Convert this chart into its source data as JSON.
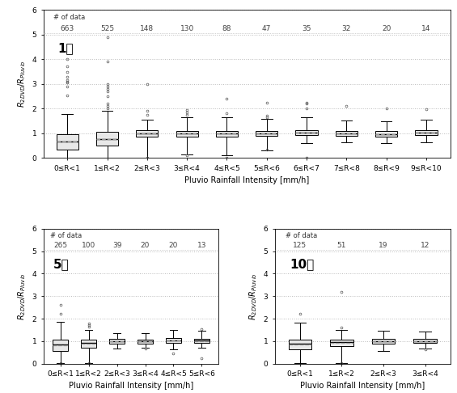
{
  "panel1": {
    "label": "1분",
    "n_data": [
      663,
      525,
      148,
      130,
      88,
      47,
      35,
      32,
      20,
      14
    ],
    "xlabels": [
      "0≤R<1",
      "1≤R<2",
      "2≤R<3",
      "3≤R<4",
      "4≤R<5",
      "5≤R<6",
      "6≤R<7",
      "7≤R<8",
      "8≤R<9",
      "9≤R<10"
    ],
    "xlabel": "Pluvio Rainfall Intensity [mm/h]",
    "ylim": [
      0,
      6
    ],
    "yticks": [
      0,
      1,
      2,
      3,
      4,
      5,
      6
    ],
    "boxes": [
      {
        "med": 0.67,
        "q1": 0.35,
        "q3": 0.98,
        "whislo": 0.01,
        "whishi": 1.77,
        "fliers_high": [
          2.55,
          2.9,
          3.05,
          3.1,
          3.15,
          3.3,
          3.5,
          3.7,
          4.0
        ],
        "fliers_low": []
      },
      {
        "med": 0.78,
        "q1": 0.5,
        "q3": 1.05,
        "whislo": 0.01,
        "whishi": 1.9,
        "fliers_high": [
          2.0,
          2.1,
          2.2,
          2.5,
          2.7,
          2.8,
          2.9,
          3.0,
          3.9,
          4.9
        ],
        "fliers_low": []
      },
      {
        "med": 1.0,
        "q1": 0.85,
        "q3": 1.12,
        "whislo": 0.02,
        "whishi": 1.55,
        "fliers_high": [
          1.75,
          1.9,
          3.0
        ],
        "fliers_low": [
          0.01
        ]
      },
      {
        "med": 1.0,
        "q1": 0.88,
        "q3": 1.1,
        "whislo": 0.15,
        "whishi": 1.65,
        "fliers_high": [
          1.75,
          1.85,
          1.95
        ],
        "fliers_low": [
          0.1
        ]
      },
      {
        "med": 1.0,
        "q1": 0.88,
        "q3": 1.1,
        "whislo": 0.1,
        "whishi": 1.65,
        "fliers_high": [
          1.82,
          2.42
        ],
        "fliers_low": [
          0.02
        ]
      },
      {
        "med": 1.0,
        "q1": 0.9,
        "q3": 1.1,
        "whislo": 0.3,
        "whishi": 1.6,
        "fliers_high": [
          1.65,
          1.72,
          2.25
        ],
        "fliers_low": [
          0.35
        ]
      },
      {
        "med": 1.02,
        "q1": 0.92,
        "q3": 1.12,
        "whislo": 0.6,
        "whishi": 1.65,
        "fliers_high": [
          2.0,
          2.2,
          2.25
        ],
        "fliers_low": [
          0.02
        ]
      },
      {
        "med": 1.0,
        "q1": 0.9,
        "q3": 1.08,
        "whislo": 0.65,
        "whishi": 1.52,
        "fliers_high": [
          2.1
        ],
        "fliers_low": []
      },
      {
        "med": 0.98,
        "q1": 0.85,
        "q3": 1.08,
        "whislo": 0.6,
        "whishi": 1.5,
        "fliers_high": [
          2.0
        ],
        "fliers_low": []
      },
      {
        "med": 1.02,
        "q1": 0.92,
        "q3": 1.12,
        "whislo": 0.65,
        "whishi": 1.55,
        "fliers_high": [
          1.98
        ],
        "fliers_low": []
      }
    ]
  },
  "panel2": {
    "label": "5분",
    "n_data": [
      265,
      100,
      39,
      20,
      20,
      13
    ],
    "xlabels": [
      "0≤R<1",
      "1≤R<2",
      "2≤R<3",
      "3≤R<4",
      "4≤R<5",
      "5≤R<6"
    ],
    "xlabel": "Pluvio Rainfall Intensity [mm/h]",
    "ylim": [
      0,
      6
    ],
    "yticks": [
      0,
      1,
      2,
      3,
      4,
      5,
      6
    ],
    "boxes": [
      {
        "med": 0.83,
        "q1": 0.55,
        "q3": 1.05,
        "whislo": 0.01,
        "whishi": 1.85,
        "fliers_high": [
          2.2,
          2.6
        ],
        "fliers_low": [
          0.01
        ]
      },
      {
        "med": 0.92,
        "q1": 0.72,
        "q3": 1.05,
        "whislo": 0.02,
        "whishi": 1.5,
        "fliers_high": [
          1.65,
          1.72,
          1.8
        ],
        "fliers_low": [
          0.01
        ]
      },
      {
        "med": 1.0,
        "q1": 0.9,
        "q3": 1.1,
        "whislo": 0.65,
        "whishi": 1.35,
        "fliers_high": [],
        "fliers_low": []
      },
      {
        "med": 1.0,
        "q1": 0.9,
        "q3": 1.08,
        "whislo": 0.7,
        "whishi": 1.35,
        "fliers_high": [],
        "fliers_low": [
          0.65
        ]
      },
      {
        "med": 1.02,
        "q1": 0.92,
        "q3": 1.12,
        "whislo": 0.62,
        "whishi": 1.48,
        "fliers_high": [],
        "fliers_low": [
          0.45
        ]
      },
      {
        "med": 1.02,
        "q1": 0.92,
        "q3": 1.1,
        "whislo": 0.72,
        "whishi": 1.45,
        "fliers_high": [
          1.55
        ],
        "fliers_low": [
          0.22
        ]
      }
    ]
  },
  "panel3": {
    "label": "10분",
    "n_data": [
      125,
      51,
      19,
      12
    ],
    "xlabels": [
      "0≤R<1",
      "1≤R<2",
      "2≤R<3",
      "3≤R<4"
    ],
    "xlabel": "Pluvio Rainfall Intensity [mm/h]",
    "ylim": [
      0,
      6
    ],
    "yticks": [
      0,
      1,
      2,
      3,
      4,
      5,
      6
    ],
    "boxes": [
      {
        "med": 0.88,
        "q1": 0.62,
        "q3": 1.05,
        "whislo": 0.02,
        "whishi": 1.82,
        "fliers_high": [
          2.2
        ],
        "fliers_low": []
      },
      {
        "med": 0.95,
        "q1": 0.78,
        "q3": 1.08,
        "whislo": 0.02,
        "whishi": 1.5,
        "fliers_high": [
          1.6,
          3.18
        ],
        "fliers_low": [
          0.02
        ]
      },
      {
        "med": 1.0,
        "q1": 0.88,
        "q3": 1.1,
        "whislo": 0.55,
        "whishi": 1.45,
        "fliers_high": [],
        "fliers_low": []
      },
      {
        "med": 1.0,
        "q1": 0.92,
        "q3": 1.1,
        "whislo": 0.65,
        "whishi": 1.42,
        "fliers_high": [],
        "fliers_low": [
          0.62
        ]
      }
    ]
  },
  "box_facecolor": "#e8e8e8",
  "box_edgecolor": "#000000",
  "median_color": "#000000",
  "mean_color": "#999999",
  "whisker_color": "#000000",
  "flier_color": "#555555",
  "grid_color": "#bbbbbb",
  "background_color": "#ffffff",
  "n_data_color": "#444444",
  "n_data_fontsize": 6.5,
  "label_fontsize": 11,
  "axis_label_fontsize": 7,
  "tick_fontsize": 6.5,
  "ndata_label_fontsize": 6
}
